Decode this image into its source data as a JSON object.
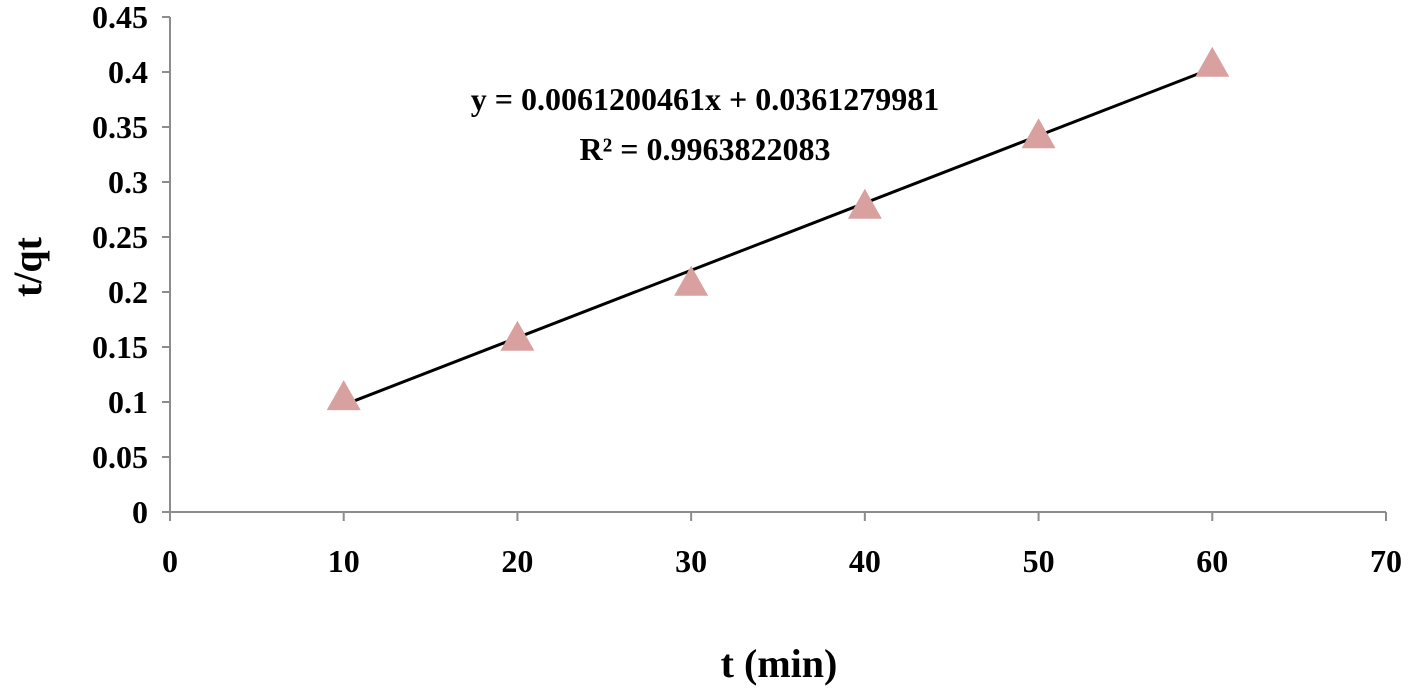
{
  "chart_data": {
    "type": "scatter",
    "xlabel": "t (min)",
    "ylabel": "t/qt",
    "xlim": [
      0,
      70
    ],
    "ylim": [
      0,
      0.45
    ],
    "x_ticks": [
      "0",
      "10",
      "20",
      "30",
      "40",
      "50",
      "60",
      "70"
    ],
    "y_ticks": [
      "0",
      "0.05",
      "0.1",
      "0.15",
      "0.2",
      "0.25",
      "0.3",
      "0.35",
      "0.4",
      "0.45"
    ],
    "grid": false,
    "legend": "none",
    "series": [
      {
        "marker": "triangle",
        "color": "#D9A0A0",
        "x": [
          10,
          20,
          30,
          40,
          50,
          60
        ],
        "y": [
          0.103,
          0.157,
          0.207,
          0.277,
          0.341,
          0.406
        ]
      }
    ],
    "trendline": {
      "type": "linear",
      "slope": 0.0061200461,
      "intercept": 0.0361279981,
      "x_range": [
        10,
        60
      ],
      "color": "#000000"
    },
    "annotations": {
      "equation": "y = 0.0061200461x + 0.0361279981",
      "r_squared": "R² = 0.9963822083"
    }
  }
}
